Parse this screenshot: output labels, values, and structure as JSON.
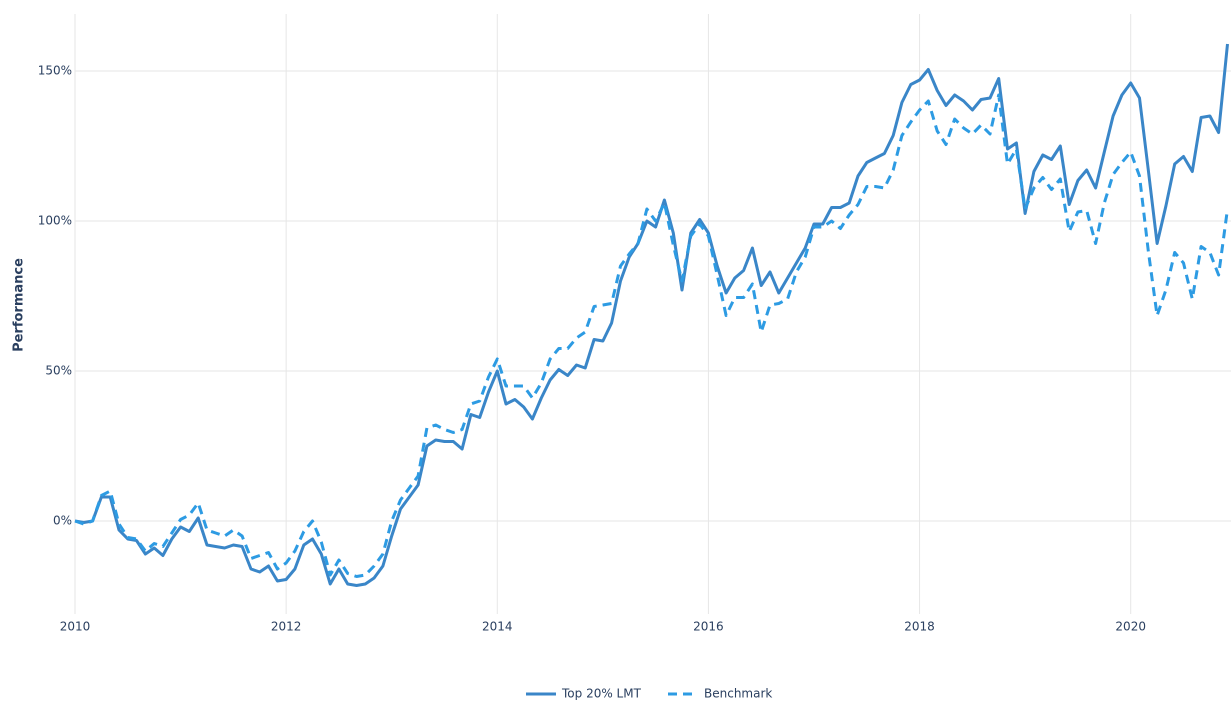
{
  "chart_data": {
    "type": "line",
    "y_label": "Performance",
    "x": [
      2010,
      2010.083,
      2010.167,
      2010.25,
      2010.333,
      2010.417,
      2010.5,
      2010.583,
      2010.667,
      2010.75,
      2010.833,
      2010.917,
      2011,
      2011.083,
      2011.167,
      2011.25,
      2011.333,
      2011.417,
      2011.5,
      2011.583,
      2011.667,
      2011.75,
      2011.833,
      2011.917,
      2012,
      2012.083,
      2012.167,
      2012.25,
      2012.333,
      2012.417,
      2012.5,
      2012.583,
      2012.667,
      2012.75,
      2012.833,
      2012.917,
      2013,
      2013.083,
      2013.167,
      2013.25,
      2013.333,
      2013.417,
      2013.5,
      2013.583,
      2013.667,
      2013.75,
      2013.833,
      2013.917,
      2014,
      2014.083,
      2014.167,
      2014.25,
      2014.333,
      2014.417,
      2014.5,
      2014.583,
      2014.667,
      2014.75,
      2014.833,
      2014.917,
      2015,
      2015.083,
      2015.167,
      2015.25,
      2015.333,
      2015.417,
      2015.5,
      2015.583,
      2015.667,
      2015.75,
      2015.833,
      2015.917,
      2016,
      2016.083,
      2016.167,
      2016.25,
      2016.333,
      2016.417,
      2016.5,
      2016.583,
      2016.667,
      2016.75,
      2016.833,
      2016.917,
      2017,
      2017.083,
      2017.167,
      2017.25,
      2017.333,
      2017.417,
      2017.5,
      2017.583,
      2017.667,
      2017.75,
      2017.833,
      2017.917,
      2018,
      2018.083,
      2018.167,
      2018.25,
      2018.333,
      2018.417,
      2018.5,
      2018.583,
      2018.667,
      2018.75,
      2018.833,
      2018.917,
      2019,
      2019.083,
      2019.167,
      2019.25,
      2019.333,
      2019.417,
      2019.5,
      2019.583,
      2019.667,
      2019.75,
      2019.833,
      2019.917,
      2020,
      2020.083,
      2020.167,
      2020.25,
      2020.333,
      2020.417,
      2020.5,
      2020.583,
      2020.667,
      2020.75,
      2020.833,
      2020.917
    ],
    "series": [
      {
        "name": "Top 20% LMT",
        "color": "#3a86c8",
        "dash": "solid",
        "values": [
          0,
          -0.5,
          0,
          8,
          8,
          -3,
          -6,
          -6.5,
          -11,
          -9,
          -11.5,
          -6,
          -2,
          -3.5,
          1,
          -8,
          -8.5,
          -9,
          -8,
          -8.5,
          -16,
          -17,
          -15,
          -20,
          -19.5,
          -16,
          -8,
          -6,
          -11,
          -21,
          -16,
          -21,
          -21.5,
          -21,
          -19,
          -15,
          -5,
          4,
          8,
          12,
          25,
          27,
          26.5,
          26.5,
          24,
          35.5,
          34.5,
          43,
          50,
          39,
          40.5,
          38,
          34,
          41,
          47,
          50.5,
          48.5,
          52,
          51,
          60.5,
          60,
          66,
          80,
          88,
          92.5,
          100,
          98,
          107,
          96,
          77,
          96,
          100.5,
          96,
          85,
          76,
          81,
          83.5,
          91,
          78.5,
          83,
          76,
          81,
          86,
          91,
          99,
          99,
          104.5,
          104.5,
          106,
          115,
          119.5,
          121,
          122.5,
          128.5,
          139.5,
          145.5,
          147,
          150.5,
          143.5,
          138.5,
          142,
          140,
          137,
          140.5,
          141,
          147.5,
          124,
          126,
          102.5,
          116.5,
          122,
          120.5,
          125,
          105.5,
          113.5,
          117,
          111,
          123,
          135,
          142,
          146,
          141,
          117,
          92.5,
          105,
          119,
          121.5,
          116.5,
          134.5,
          135,
          129.5,
          159
        ]
      },
      {
        "name": "Benchmark",
        "color": "#2d9be3",
        "dash": "dash",
        "values": [
          0,
          -1,
          0,
          8.5,
          10,
          -1,
          -5.5,
          -6,
          -10,
          -7.5,
          -8.5,
          -4,
          0.5,
          2,
          6,
          -3,
          -4,
          -5,
          -3,
          -5,
          -12.5,
          -11.5,
          -10.5,
          -16,
          -14,
          -10,
          -3.5,
          0,
          -7,
          -18,
          -13,
          -17.5,
          -18.5,
          -18,
          -15,
          -11,
          0,
          7,
          11,
          15,
          31,
          32,
          30.5,
          29.5,
          30.5,
          39,
          40,
          48,
          54,
          45,
          45,
          45,
          41,
          46,
          54,
          57.5,
          57.5,
          61,
          63,
          71.5,
          72,
          72.5,
          85,
          89,
          92.5,
          104,
          100,
          106,
          92,
          80,
          95,
          99,
          95,
          82,
          68.5,
          74.5,
          74.5,
          79,
          63,
          72,
          72.5,
          74,
          83,
          88,
          98,
          98,
          100,
          97.5,
          102,
          105.5,
          111.5,
          111.5,
          111,
          117,
          128.5,
          133,
          137,
          140,
          130,
          125.5,
          134,
          131,
          129,
          132,
          129,
          142,
          119,
          124,
          104,
          111,
          114.5,
          110.5,
          114,
          96.5,
          103,
          103.5,
          92.5,
          106,
          115.5,
          119.5,
          123,
          115,
          90,
          68.5,
          77,
          89.5,
          86,
          74,
          91.5,
          89.5,
          82,
          104
        ]
      }
    ],
    "xlim": [
      2010,
      2020.95
    ],
    "xticks": [
      2010,
      2012,
      2014,
      2016,
      2018,
      2020
    ],
    "ylim": [
      -31,
      169
    ],
    "yticks": [
      {
        "value": 0,
        "label": "0%"
      },
      {
        "value": 50,
        "label": "50%"
      },
      {
        "value": 100,
        "label": "100%"
      },
      {
        "value": 150,
        "label": "150%"
      }
    ],
    "grid": true,
    "legend": "bottom"
  }
}
